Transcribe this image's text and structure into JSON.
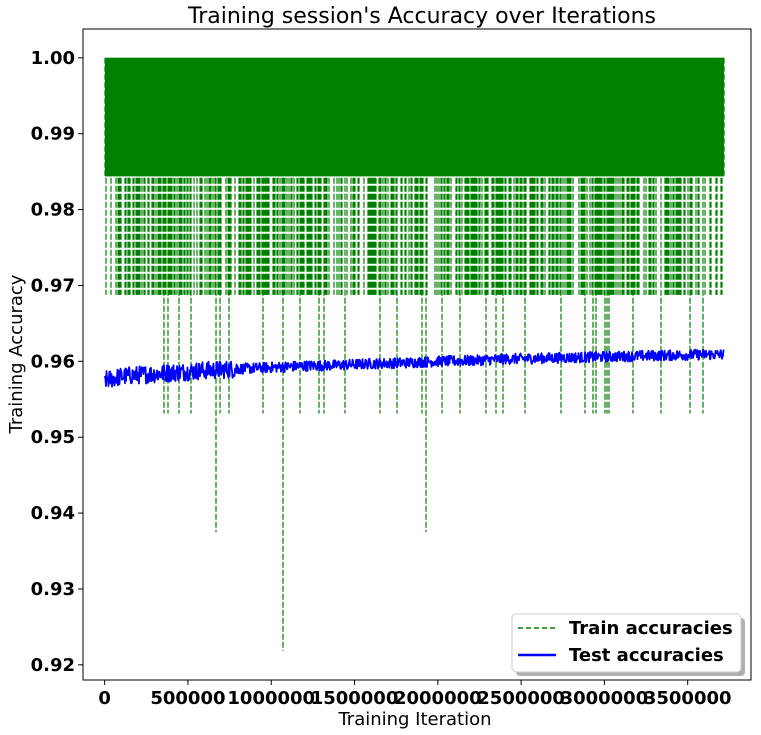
{
  "chart_data": {
    "type": "line",
    "title": "Training session's Accuracy over Iterations",
    "xlabel": "Training Iteration",
    "ylabel": "Training Accuracy",
    "xlim": [
      -130000,
      3880000
    ],
    "ylim": [
      0.918,
      1.0038
    ],
    "x_ticks": [
      0,
      500000,
      1000000,
      1500000,
      2000000,
      2500000,
      3000000,
      3500000
    ],
    "x_tick_labels": [
      "0",
      "500000",
      "1000000",
      "1500000",
      "2000000",
      "2500000",
      "3000000",
      "3500000"
    ],
    "y_ticks": [
      0.92,
      0.93,
      0.94,
      0.95,
      0.96,
      0.97,
      0.98,
      0.99,
      1.0
    ],
    "y_tick_labels": [
      "0.92",
      "0.93",
      "0.94",
      "0.95",
      "0.96",
      "0.97",
      "0.98",
      "0.99",
      "1.00"
    ],
    "grid": false,
    "legend_position": "bottom-right",
    "x_range": [
      0,
      3720000
    ],
    "series": [
      {
        "name": "Train accuracies",
        "color": "#008000",
        "style": "dashed",
        "levels": [
          1.0,
          0.984375,
          0.96875,
          0.953125
        ],
        "dips": [
          {
            "x": 670000,
            "y": 0.9375
          },
          {
            "x": 1070000,
            "y": 0.921875
          },
          {
            "x": 1930000,
            "y": 0.9375
          }
        ]
      },
      {
        "name": "Test accuracies",
        "color": "#0000ff",
        "style": "solid",
        "x": [
          0,
          100000,
          200000,
          400000,
          600000,
          800000,
          1000000,
          1200000,
          1400000,
          1600000,
          1800000,
          2000000,
          2200000,
          2400000,
          2600000,
          2800000,
          3000000,
          3200000,
          3400000,
          3600000,
          3720000
        ],
        "values": [
          0.9575,
          0.958,
          0.9582,
          0.9585,
          0.9588,
          0.959,
          0.9592,
          0.9594,
          0.9595,
          0.9597,
          0.9598,
          0.96,
          0.9601,
          0.9603,
          0.9604,
          0.9605,
          0.9606,
          0.9607,
          0.9608,
          0.9609,
          0.9609
        ]
      }
    ]
  }
}
